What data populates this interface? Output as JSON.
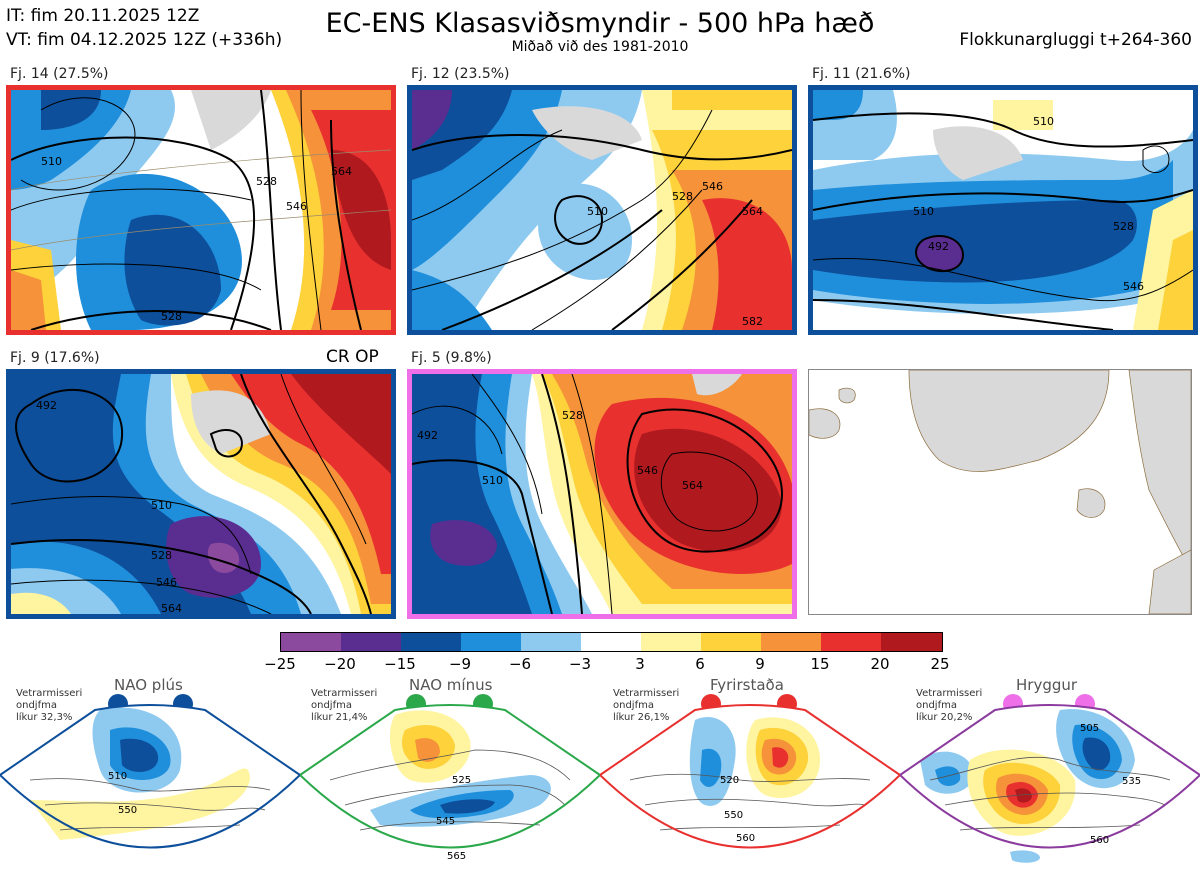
{
  "header": {
    "it": "IT: fim 20.11.2025 12Z",
    "vt": "VT: fim 04.12.2025 12Z  (+336h)",
    "title": "EC-ENS Klasasviðsmyndir - 500 hPa hæð",
    "subtitle": "Miðað við des 1981-2010",
    "window": "Flokkunargluggi t+264-360"
  },
  "panels": [
    {
      "label": "Fj. 14 (27.5%)",
      "frame_color": "#e8312f",
      "contours": [
        "510",
        "528",
        "546",
        "564",
        "528"
      ]
    },
    {
      "label": "Fj. 12 (23.5%)",
      "frame_color": "#0d4f9b",
      "contours": [
        "510",
        "528",
        "546",
        "564",
        "582"
      ]
    },
    {
      "label": "Fj. 11 (21.6%)",
      "frame_color": "#0d4f9b",
      "contours": [
        "510",
        "492",
        "528",
        "546",
        "510"
      ]
    },
    {
      "label": "Fj. 9 (17.6%)",
      "frame_color": "#0d4f9b",
      "contours": [
        "492",
        "510",
        "528",
        "546",
        "564"
      ]
    },
    {
      "label": "Fj. 5 (9.8%)",
      "frame_color": "#ee6fe8",
      "contours": [
        "492",
        "528",
        "546",
        "564",
        "510"
      ]
    }
  ],
  "crop_label": "CR OP",
  "legend": {
    "ticks": [
      "−25",
      "−20",
      "−15",
      "−9",
      "−6",
      "−3",
      "3",
      "6",
      "9",
      "15",
      "20",
      "25"
    ],
    "colors": [
      "#8b4a9e",
      "#5a2d91",
      "#0d4f9b",
      "#1f8fdc",
      "#8ecaf0",
      "#ffffff",
      "#fff4a0",
      "#fdd23a",
      "#f5923a",
      "#e8312f",
      "#b01a1f"
    ]
  },
  "regimes": [
    {
      "name": "NAO plús",
      "note1": "Vetrarmisseri",
      "note2": "ondjfma",
      "note3": "líkur 32,3%",
      "dot_color": "#0d4f9b",
      "frame_color": "#0d4f9b",
      "contours": [
        "510",
        "550"
      ]
    },
    {
      "name": "NAO mínus",
      "note1": "Vetrarmisseri",
      "note2": "ondjfma",
      "note3": "líkur 21,4%",
      "dot_color": "#2aa84a",
      "frame_color": "#2aa84a",
      "contours": [
        "525",
        "545",
        "565"
      ]
    },
    {
      "name": "Fyrirstaða",
      "note1": "Vetrarmisseri",
      "note2": "ondjfma",
      "note3": "líkur 26,1%",
      "dot_color": "#e8312f",
      "frame_color": "#e8312f",
      "contours": [
        "520",
        "550",
        "560"
      ]
    },
    {
      "name": "Hryggur",
      "note1": "Vetrarmisseri",
      "note2": "ondjfma",
      "note3": "líkur 20,2%",
      "dot_color": "#ee6fe8",
      "frame_color": "#8b3a9e",
      "contours": [
        "505",
        "535",
        "560"
      ]
    }
  ]
}
